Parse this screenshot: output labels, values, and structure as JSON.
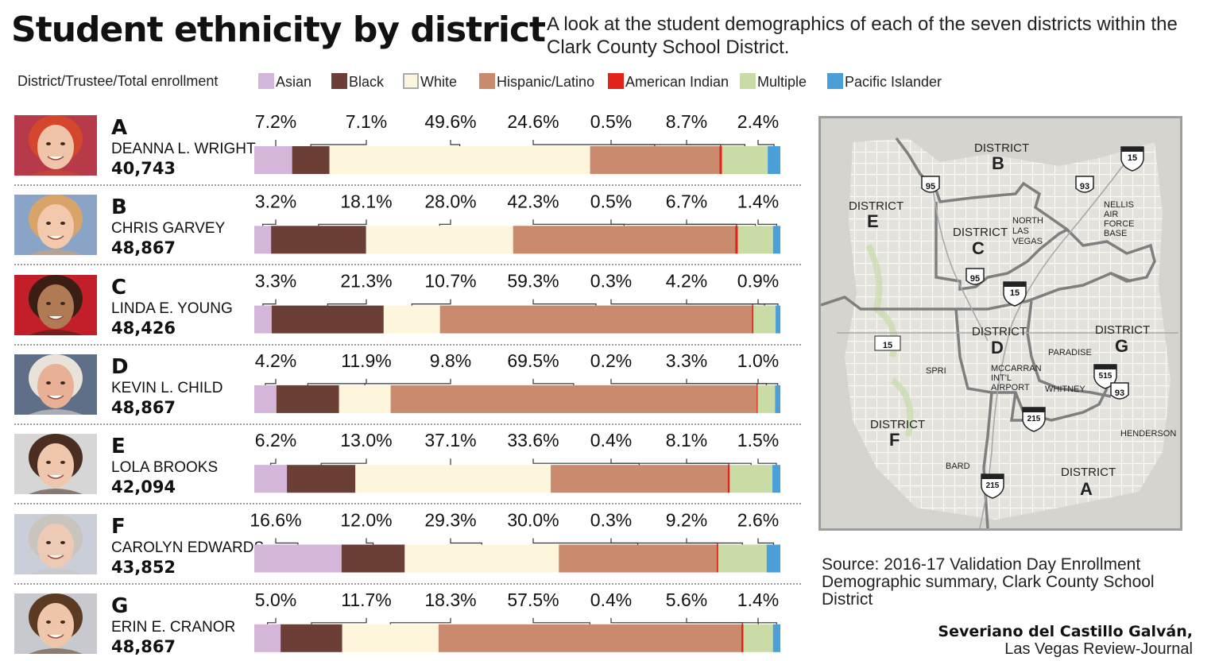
{
  "title": "Student ethnicity by district",
  "subtitle": "A look at the student demographics of each of the seven districts within the Clark County School District.",
  "header_label": "District/Trustee/Total enrollment",
  "colors": {
    "Asian": "#d4b6da",
    "Black": "#6b3f35",
    "White": "#fdf5dc",
    "Hispanic/Latino": "#c98a6d",
    "American Indian": "#e2231a",
    "Multiple": "#c9dca6",
    "Pacific Islander": "#4a9fd8"
  },
  "legend": [
    "Asian",
    "Black",
    "White",
    "Hispanic/Latino",
    "American Indian",
    "Multiple",
    "Pacific Islander"
  ],
  "chart_data": {
    "type": "bar",
    "orientation": "horizontal",
    "stacked": true,
    "categories": [
      "A",
      "B",
      "C",
      "D",
      "E",
      "F",
      "G"
    ],
    "series": [
      {
        "name": "Asian",
        "values": [
          7.2,
          3.2,
          3.3,
          4.2,
          6.2,
          16.6,
          5.0
        ]
      },
      {
        "name": "Black",
        "values": [
          7.1,
          18.1,
          21.3,
          11.9,
          13.0,
          12.0,
          11.7
        ]
      },
      {
        "name": "White",
        "values": [
          49.6,
          28.0,
          10.7,
          9.8,
          37.1,
          29.3,
          18.3
        ]
      },
      {
        "name": "Hispanic/Latino",
        "values": [
          24.6,
          42.3,
          59.3,
          69.5,
          33.6,
          30.0,
          57.5
        ]
      },
      {
        "name": "American Indian",
        "values": [
          0.5,
          0.5,
          0.3,
          0.2,
          0.4,
          0.3,
          0.4
        ]
      },
      {
        "name": "Multiple",
        "values": [
          8.7,
          6.7,
          4.2,
          3.3,
          8.1,
          9.2,
          5.6
        ]
      },
      {
        "name": "Pacific Islander",
        "values": [
          2.4,
          1.4,
          0.9,
          1.0,
          1.5,
          2.6,
          1.4
        ]
      }
    ],
    "labels": [
      [
        "7.2%",
        "7.1%",
        "49.6%",
        "24.6%",
        "0.5%",
        "8.7%",
        "2.4%"
      ],
      [
        "3.2%",
        "18.1%",
        "28.0%",
        "42.3%",
        "0.5%",
        "6.7%",
        "1.4%"
      ],
      [
        "3.3%",
        "21.3%",
        "10.7%",
        "59.3%",
        "0.3%",
        "4.2%",
        "0.9%"
      ],
      [
        "4.2%",
        "11.9%",
        "9.8%",
        "69.5%",
        "0.2%",
        "3.3%",
        "1.0%"
      ],
      [
        "6.2%",
        "13.0%",
        "37.1%",
        "33.6%",
        "0.4%",
        "8.1%",
        "1.5%"
      ],
      [
        "16.6%",
        "12.0%",
        "29.3%",
        "30.0%",
        "0.3%",
        "9.2%",
        "2.6%"
      ],
      [
        "5.0%",
        "11.7%",
        "18.3%",
        "57.5%",
        "0.4%",
        "5.6%",
        "1.4%"
      ]
    ],
    "legend_position": "top",
    "grid": false
  },
  "districts": [
    {
      "letter": "A",
      "trustee": "DEANNA L. WRIGHT",
      "enrollment": "40,743"
    },
    {
      "letter": "B",
      "trustee": "CHRIS GARVEY",
      "enrollment": "48,867"
    },
    {
      "letter": "C",
      "trustee": "LINDA E. YOUNG",
      "enrollment": "48,426"
    },
    {
      "letter": "D",
      "trustee": "KEVIN L. CHILD",
      "enrollment": "48,867"
    },
    {
      "letter": "E",
      "trustee": "LOLA BROOKS",
      "enrollment": "42,094"
    },
    {
      "letter": "F",
      "trustee": "CAROLYN EDWARDS",
      "enrollment": "43,852"
    },
    {
      "letter": "G",
      "trustee": "ERIN E. CRANOR",
      "enrollment": "48,867"
    }
  ],
  "map": {
    "district_word": "DISTRICT",
    "labels": {
      "A": "A",
      "B": "B",
      "C": "C",
      "D": "D",
      "E": "E",
      "F": "F",
      "G": "G",
      "north_las_vegas": [
        "NORTH",
        "LAS",
        "VEGAS"
      ],
      "nellis": [
        "NELLIS",
        "AIR",
        "FORCE",
        "BASE"
      ],
      "mccarran": [
        "MCCARRAN",
        "INT'L",
        "AIRPORT"
      ],
      "paradise": "PARADISE",
      "spring": "SPRI",
      "whitney": "WHITNEY",
      "henderson": "HENDERSON",
      "bard": "BARD"
    },
    "shields": [
      "15",
      "95",
      "93",
      "95",
      "15",
      "515",
      "93",
      "215",
      "15",
      "215"
    ]
  },
  "source": "Source: 2016-17 Validation Day Enrollment Demographic summary, Clark County School District",
  "credit": {
    "name": "Severiano del Castillo Galván,",
    "org": "Las Vegas Review-Journal"
  }
}
